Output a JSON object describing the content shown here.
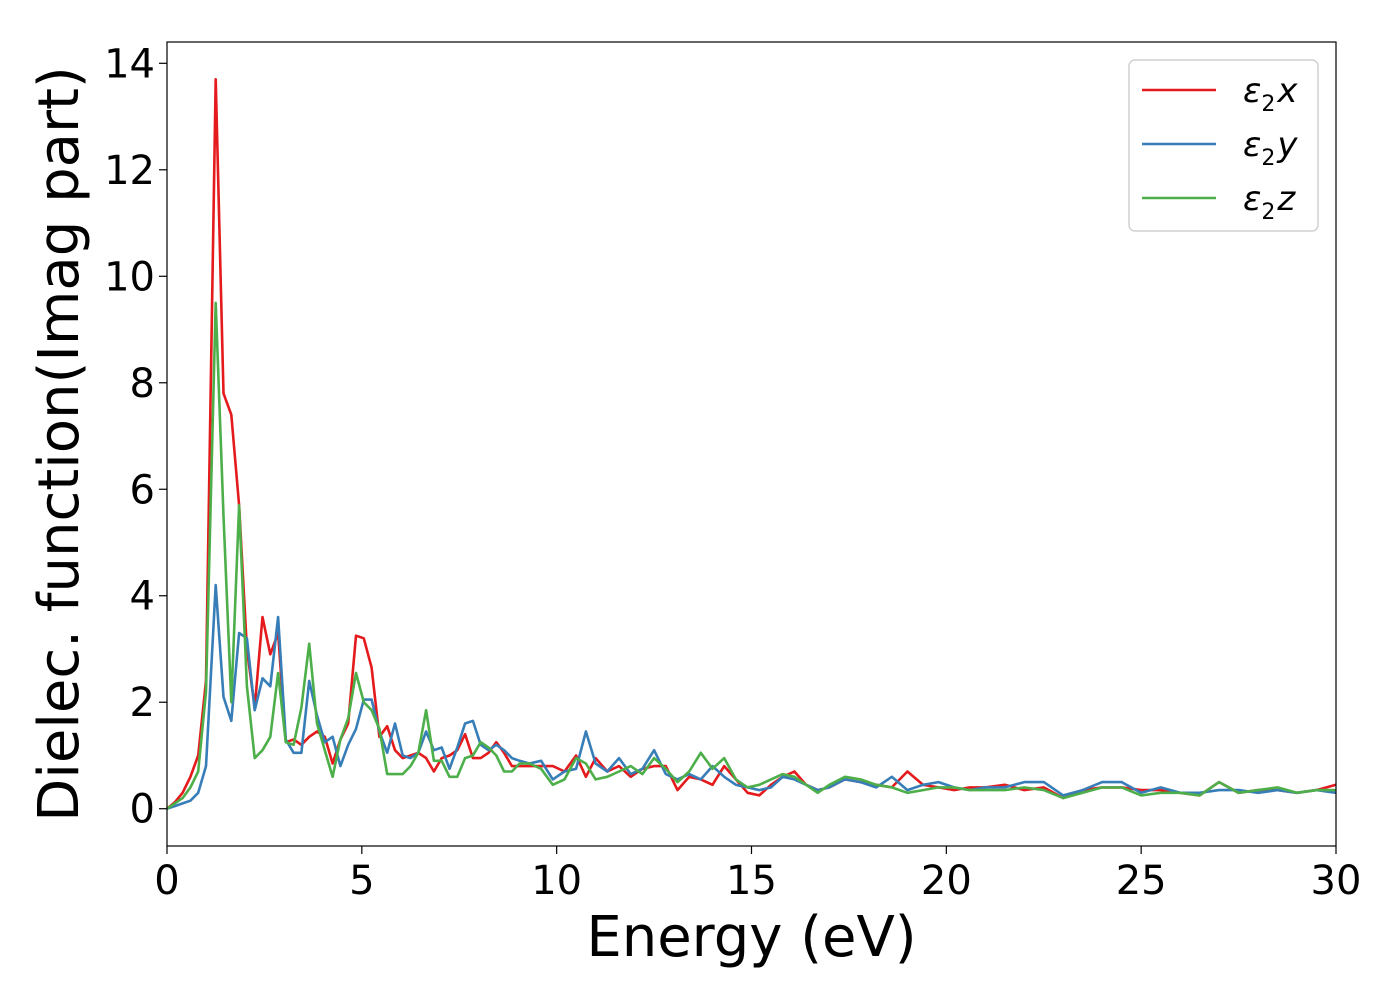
{
  "chart_data": {
    "type": "line",
    "title": "",
    "xlabel": "Energy (eV)",
    "ylabel": "Dielec. function(Imag part)",
    "xlim": [
      0,
      30
    ],
    "ylim": [
      -0.7,
      14.4
    ],
    "xticks": [
      "0",
      "5",
      "10",
      "15",
      "20",
      "25",
      "30"
    ],
    "yticks": [
      "0",
      "2",
      "4",
      "6",
      "8",
      "10",
      "12",
      "14"
    ],
    "grid": false,
    "legend_position": "top-right",
    "series": [
      {
        "name": "ε2x",
        "legend": {
          "base": "ε",
          "sub": "2",
          "var": "x"
        },
        "color": "#e41a1c",
        "x": [
          0,
          0.2,
          0.4,
          0.6,
          0.8,
          1.0,
          1.25,
          1.45,
          1.65,
          1.85,
          2.05,
          2.25,
          2.45,
          2.65,
          2.85,
          3.05,
          3.25,
          3.45,
          3.65,
          3.85,
          4.05,
          4.25,
          4.45,
          4.65,
          4.85,
          5.05,
          5.25,
          5.45,
          5.65,
          5.85,
          6.05,
          6.25,
          6.45,
          6.65,
          6.85,
          7.05,
          7.25,
          7.45,
          7.65,
          7.85,
          8.05,
          8.25,
          8.45,
          8.65,
          8.85,
          9.05,
          9.3,
          9.6,
          9.9,
          10.2,
          10.5,
          10.75,
          11.0,
          11.3,
          11.6,
          11.9,
          12.2,
          12.5,
          12.8,
          13.1,
          13.4,
          13.7,
          14.0,
          14.3,
          14.6,
          14.9,
          15.2,
          15.5,
          15.8,
          16.1,
          16.4,
          16.7,
          17.0,
          17.4,
          17.8,
          18.2,
          18.6,
          19.0,
          19.4,
          19.8,
          20.2,
          20.6,
          21.0,
          21.5,
          22.0,
          22.5,
          23.0,
          23.5,
          24.0,
          24.5,
          25.0,
          25.5,
          26.0,
          26.5,
          27.0,
          27.5,
          28.0,
          28.5,
          29.0,
          29.5,
          30.0
        ],
        "y": [
          0.0,
          0.12,
          0.3,
          0.6,
          1.0,
          2.4,
          13.7,
          7.8,
          7.4,
          5.7,
          3.0,
          1.9,
          3.6,
          2.9,
          3.3,
          1.25,
          1.3,
          1.2,
          1.35,
          1.45,
          1.35,
          0.85,
          1.3,
          1.6,
          3.25,
          3.2,
          2.65,
          1.35,
          1.55,
          1.1,
          0.95,
          1.0,
          1.05,
          0.95,
          0.7,
          0.95,
          1.0,
          1.1,
          1.4,
          0.95,
          0.95,
          1.05,
          1.25,
          1.05,
          0.8,
          0.8,
          0.8,
          0.8,
          0.8,
          0.7,
          1.0,
          0.6,
          0.95,
          0.7,
          0.8,
          0.6,
          0.75,
          0.8,
          0.8,
          0.35,
          0.6,
          0.55,
          0.45,
          0.8,
          0.55,
          0.3,
          0.25,
          0.45,
          0.6,
          0.7,
          0.45,
          0.35,
          0.4,
          0.55,
          0.5,
          0.45,
          0.4,
          0.7,
          0.45,
          0.4,
          0.35,
          0.4,
          0.4,
          0.45,
          0.35,
          0.4,
          0.2,
          0.35,
          0.4,
          0.4,
          0.35,
          0.35,
          0.3,
          0.25,
          0.5,
          0.3,
          0.35,
          0.35,
          0.3,
          0.35,
          0.45
        ]
      },
      {
        "name": "ε2y",
        "legend": {
          "base": "ε",
          "sub": "2",
          "var": "y"
        },
        "color": "#377eb8",
        "x": [
          0,
          0.2,
          0.4,
          0.6,
          0.8,
          1.0,
          1.25,
          1.45,
          1.65,
          1.85,
          2.05,
          2.25,
          2.45,
          2.65,
          2.85,
          3.05,
          3.25,
          3.45,
          3.65,
          3.85,
          4.05,
          4.25,
          4.45,
          4.65,
          4.85,
          5.05,
          5.25,
          5.45,
          5.65,
          5.85,
          6.05,
          6.25,
          6.45,
          6.65,
          6.85,
          7.05,
          7.25,
          7.45,
          7.65,
          7.85,
          8.05,
          8.25,
          8.45,
          8.65,
          8.85,
          9.05,
          9.3,
          9.6,
          9.9,
          10.2,
          10.5,
          10.75,
          11.0,
          11.3,
          11.6,
          11.9,
          12.2,
          12.5,
          12.8,
          13.1,
          13.4,
          13.7,
          14.0,
          14.3,
          14.6,
          14.9,
          15.2,
          15.5,
          15.8,
          16.1,
          16.4,
          16.7,
          17.0,
          17.4,
          17.8,
          18.2,
          18.6,
          19.0,
          19.4,
          19.8,
          20.2,
          20.6,
          21.0,
          21.5,
          22.0,
          22.5,
          23.0,
          23.5,
          24.0,
          24.5,
          25.0,
          25.5,
          26.0,
          26.5,
          27.0,
          27.5,
          28.0,
          28.5,
          29.0,
          29.5,
          30.0
        ],
        "y": [
          0.0,
          0.05,
          0.1,
          0.15,
          0.3,
          0.8,
          4.2,
          2.1,
          1.65,
          3.3,
          3.2,
          1.85,
          2.45,
          2.3,
          3.6,
          1.3,
          1.05,
          1.05,
          2.4,
          1.75,
          1.25,
          1.35,
          0.8,
          1.2,
          1.5,
          2.05,
          2.05,
          1.45,
          1.05,
          1.6,
          1.0,
          0.95,
          1.05,
          1.45,
          1.1,
          1.15,
          0.75,
          1.15,
          1.6,
          1.65,
          1.2,
          1.1,
          1.2,
          1.1,
          0.95,
          0.9,
          0.85,
          0.9,
          0.55,
          0.7,
          0.75,
          1.45,
          0.85,
          0.7,
          0.95,
          0.65,
          0.75,
          1.1,
          0.65,
          0.55,
          0.65,
          0.55,
          0.8,
          0.6,
          0.45,
          0.4,
          0.35,
          0.4,
          0.6,
          0.55,
          0.45,
          0.35,
          0.4,
          0.55,
          0.5,
          0.4,
          0.6,
          0.35,
          0.45,
          0.5,
          0.4,
          0.35,
          0.4,
          0.4,
          0.5,
          0.5,
          0.25,
          0.35,
          0.5,
          0.5,
          0.3,
          0.4,
          0.3,
          0.3,
          0.35,
          0.35,
          0.3,
          0.35,
          0.3,
          0.35,
          0.3
        ]
      },
      {
        "name": "ε2z",
        "legend": {
          "base": "ε",
          "sub": "2",
          "var": "z"
        },
        "color": "#4daf4a",
        "x": [
          0,
          0.2,
          0.4,
          0.6,
          0.8,
          1.0,
          1.25,
          1.45,
          1.65,
          1.85,
          2.05,
          2.25,
          2.45,
          2.65,
          2.85,
          3.05,
          3.25,
          3.45,
          3.65,
          3.85,
          4.05,
          4.25,
          4.45,
          4.65,
          4.85,
          5.05,
          5.25,
          5.45,
          5.65,
          5.85,
          6.05,
          6.25,
          6.45,
          6.65,
          6.85,
          7.05,
          7.25,
          7.45,
          7.65,
          7.85,
          8.05,
          8.25,
          8.45,
          8.65,
          8.85,
          9.05,
          9.3,
          9.6,
          9.9,
          10.2,
          10.5,
          10.75,
          11.0,
          11.3,
          11.6,
          11.9,
          12.2,
          12.5,
          12.8,
          13.1,
          13.4,
          13.7,
          14.0,
          14.3,
          14.6,
          14.9,
          15.2,
          15.5,
          15.8,
          16.1,
          16.4,
          16.7,
          17.0,
          17.4,
          17.8,
          18.2,
          18.6,
          19.0,
          19.4,
          19.8,
          20.2,
          20.6,
          21.0,
          21.5,
          22.0,
          22.5,
          23.0,
          23.5,
          24.0,
          24.5,
          25.0,
          25.5,
          26.0,
          26.5,
          27.0,
          27.5,
          28.0,
          28.5,
          29.0,
          29.5,
          30.0
        ],
        "y": [
          0.0,
          0.1,
          0.2,
          0.4,
          0.7,
          2.2,
          9.5,
          5.5,
          2.0,
          5.7,
          2.3,
          0.95,
          1.1,
          1.35,
          2.55,
          1.25,
          1.2,
          1.9,
          3.1,
          1.6,
          1.1,
          0.6,
          1.3,
          1.7,
          2.55,
          2.0,
          1.85,
          1.5,
          0.65,
          0.65,
          0.65,
          0.8,
          1.05,
          1.85,
          0.9,
          0.9,
          0.6,
          0.6,
          0.95,
          1.0,
          1.25,
          1.15,
          1.0,
          0.7,
          0.7,
          0.85,
          0.85,
          0.75,
          0.45,
          0.55,
          0.95,
          0.85,
          0.55,
          0.6,
          0.7,
          0.8,
          0.65,
          0.95,
          0.75,
          0.5,
          0.7,
          1.05,
          0.75,
          0.95,
          0.55,
          0.4,
          0.45,
          0.55,
          0.65,
          0.6,
          0.45,
          0.3,
          0.45,
          0.6,
          0.55,
          0.45,
          0.4,
          0.3,
          0.35,
          0.4,
          0.4,
          0.35,
          0.35,
          0.35,
          0.4,
          0.35,
          0.2,
          0.3,
          0.4,
          0.4,
          0.25,
          0.3,
          0.3,
          0.25,
          0.5,
          0.3,
          0.35,
          0.4,
          0.3,
          0.35,
          0.35
        ]
      }
    ]
  }
}
